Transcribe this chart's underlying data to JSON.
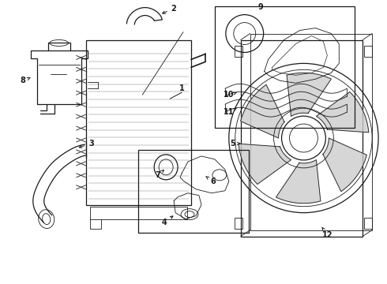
{
  "bg_color": "#ffffff",
  "line_color": "#1a1a1a",
  "fig_width": 4.9,
  "fig_height": 3.6,
  "dpi": 100,
  "label_fs": 7,
  "label_bold": true
}
